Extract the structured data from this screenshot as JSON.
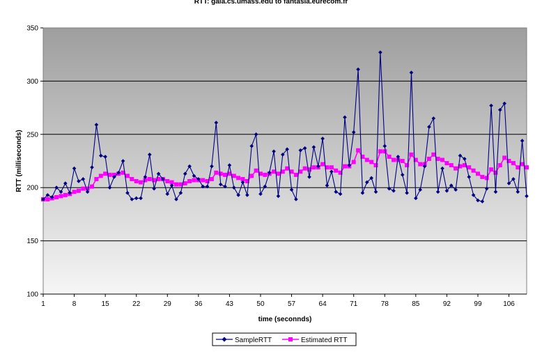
{
  "chart_data": {
    "type": "line",
    "title": "RTT: gaia.cs.umass.edu to fantasia.eurecom.fr",
    "xlabel": "time (seconnds)",
    "ylabel": "RTT (milliseconds)",
    "ylim": [
      100,
      350
    ],
    "yticks": [
      100,
      150,
      200,
      250,
      300,
      350
    ],
    "xlim": [
      1,
      110
    ],
    "xticks": [
      1,
      8,
      15,
      22,
      29,
      36,
      43,
      50,
      57,
      64,
      71,
      78,
      85,
      92,
      99,
      106
    ],
    "grid": "horizontal",
    "legend": "bottom-center",
    "series": [
      {
        "name": "SampleRTT",
        "color": "#000080",
        "marker": "diamond",
        "values": [
          189,
          193,
          191,
          200,
          196,
          204,
          195,
          218,
          206,
          208,
          196,
          219,
          259,
          230,
          229,
          200,
          210,
          214,
          225,
          195,
          189,
          190,
          190,
          210,
          231,
          199,
          213,
          208,
          194,
          202,
          189,
          195,
          213,
          220,
          211,
          208,
          201,
          201,
          220,
          261,
          203,
          201,
          221,
          200,
          193,
          205,
          193,
          239,
          250,
          194,
          201,
          214,
          234,
          192,
          231,
          236,
          198,
          189,
          235,
          237,
          210,
          238,
          220,
          246,
          202,
          215,
          196,
          194,
          266,
          221,
          252,
          311,
          195,
          205,
          209,
          196,
          327,
          239,
          199,
          197,
          229,
          212,
          195,
          308,
          190,
          198,
          220,
          257,
          265,
          196,
          218,
          197,
          202,
          198,
          230,
          227,
          210,
          193,
          188,
          187,
          199,
          277,
          196,
          273,
          279,
          204,
          208,
          196,
          244,
          192
        ]
      },
      {
        "name": "Estimated RTT",
        "color": "#ff00ff",
        "marker": "square",
        "values": [
          189,
          189,
          190,
          191,
          192,
          193,
          194,
          196,
          197,
          199,
          199,
          201,
          208,
          211,
          213,
          212,
          212,
          213,
          214,
          211,
          208,
          206,
          205,
          207,
          208,
          207,
          208,
          208,
          206,
          205,
          203,
          203,
          204,
          206,
          207,
          207,
          207,
          206,
          208,
          214,
          213,
          212,
          213,
          211,
          209,
          208,
          206,
          211,
          216,
          213,
          212,
          213,
          215,
          213,
          215,
          218,
          215,
          212,
          215,
          218,
          217,
          219,
          219,
          222,
          219,
          219,
          216,
          214,
          220,
          220,
          224,
          235,
          229,
          226,
          224,
          221,
          234,
          234,
          229,
          226,
          226,
          225,
          221,
          231,
          226,
          222,
          222,
          227,
          231,
          227,
          226,
          223,
          221,
          218,
          220,
          221,
          219,
          216,
          213,
          210,
          209,
          217,
          214,
          221,
          228,
          225,
          223,
          219,
          222,
          219
        ]
      }
    ]
  }
}
